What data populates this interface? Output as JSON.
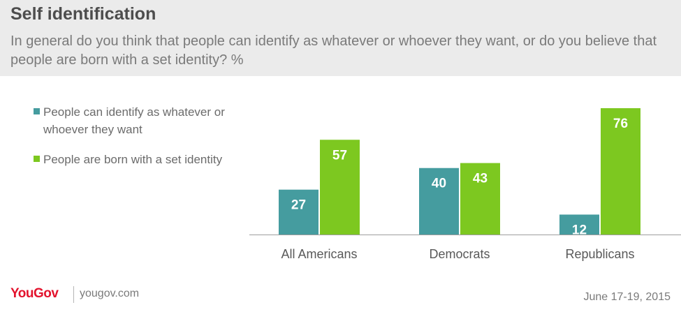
{
  "header": {
    "title": "Self identification",
    "subtitle": "In general do you think that people can identify as whatever or whoever they want, or do you believe that people are born with a set identity? %"
  },
  "legend": {
    "items": [
      {
        "label": "People can identify as whatever or whoever they want",
        "color": "#459c9f"
      },
      {
        "label": "People are born with a set identity",
        "color": "#7dc820"
      }
    ]
  },
  "chart_data": {
    "type": "bar",
    "categories": [
      "All Americans",
      "Democrats",
      "Republicans"
    ],
    "series": [
      {
        "name": "People can identify as whatever or whoever they want",
        "values": [
          27,
          40,
          12
        ],
        "color": "#459c9f"
      },
      {
        "name": "People are born with a set identity",
        "values": [
          57,
          43,
          76
        ],
        "color": "#7dc820"
      }
    ],
    "ylim": [
      0,
      76
    ],
    "grid": false,
    "legend_position": "left",
    "data_labels": true
  },
  "footer": {
    "brand": "YouGov",
    "site": "yougov.com",
    "date": "June 17-19, 2015"
  }
}
